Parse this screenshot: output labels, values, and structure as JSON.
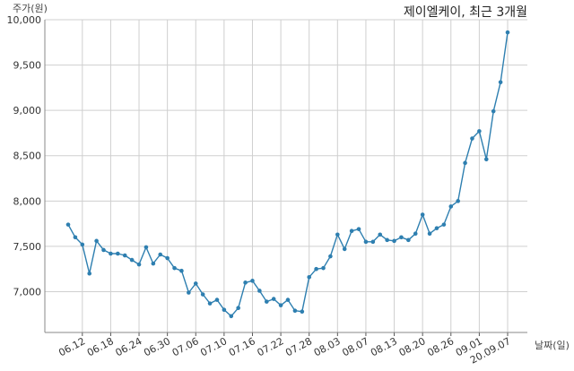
{
  "chart_data": {
    "type": "line",
    "title": "제이엘케이, 최근 3개월",
    "ylabel": "주가(원)",
    "xlabel": "날짜(일)",
    "ylim": [
      6550,
      10000
    ],
    "yticks": [
      7000,
      7500,
      8000,
      8500,
      9000,
      9500,
      10000
    ],
    "ytick_labels": [
      "7,000",
      "7,500",
      "8,000",
      "8,500",
      "9,000",
      "9,500",
      "10,000"
    ],
    "xtick_labels": [
      "06.12",
      "06.18",
      "06.24",
      "06.30",
      "07.06",
      "07.10",
      "07.16",
      "07.22",
      "07.28",
      "08.03",
      "08.07",
      "08.13",
      "08.20",
      "08.26",
      "09.01",
      "20.09.07"
    ],
    "grid": true,
    "color": "#2e7fb0",
    "series": [
      {
        "name": "",
        "x": [
          "06.10",
          "06.11",
          "06.12",
          "06.15",
          "06.16",
          "06.17",
          "06.18",
          "06.19",
          "06.22",
          "06.23",
          "06.24",
          "06.25",
          "06.26",
          "06.29",
          "06.30",
          "07.01",
          "07.02",
          "07.03",
          "07.06",
          "07.07",
          "07.08",
          "07.09",
          "07.10",
          "07.13",
          "07.14",
          "07.15",
          "07.16",
          "07.17",
          "07.20",
          "07.21",
          "07.22",
          "07.23",
          "07.24",
          "07.27",
          "07.28",
          "07.29",
          "07.30",
          "07.31",
          "08.03",
          "08.04",
          "08.05",
          "08.06",
          "08.07",
          "08.10",
          "08.11",
          "08.12",
          "08.13",
          "08.14",
          "08.18",
          "08.19",
          "08.20",
          "08.21",
          "08.24",
          "08.25",
          "08.26",
          "08.27",
          "08.28",
          "08.31",
          "09.01",
          "09.02",
          "09.03",
          "09.04",
          "09.07"
        ],
        "values": [
          7740,
          7600,
          7520,
          7200,
          7560,
          7460,
          7420,
          7420,
          7400,
          7350,
          7300,
          7490,
          7310,
          7410,
          7370,
          7260,
          7230,
          6990,
          7090,
          6970,
          6870,
          6910,
          6800,
          6730,
          6820,
          7100,
          7120,
          7010,
          6890,
          6920,
          6850,
          6910,
          6790,
          6780,
          7160,
          7250,
          7260,
          7390,
          7630,
          7470,
          7670,
          7690,
          7550,
          7550,
          7630,
          7570,
          7560,
          7600,
          7570,
          7640,
          7850,
          7640,
          7700,
          7740,
          7940,
          8000,
          8420,
          8690,
          8770,
          8460,
          8990,
          9310,
          9860
        ]
      }
    ]
  }
}
